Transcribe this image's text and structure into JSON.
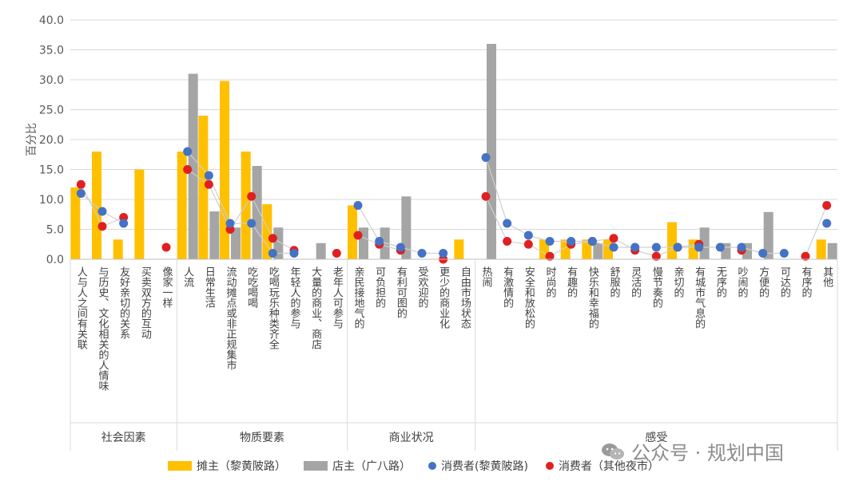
{
  "chart_data": {
    "type": "bar",
    "title": "",
    "ylabel": "百分比",
    "ylim": [
      0,
      40
    ],
    "yticks": [
      "0.0",
      "5.0",
      "10.0",
      "15.0",
      "20.0",
      "25.0",
      "30.0",
      "35.0",
      "40.0"
    ],
    "yticks_values": [
      0,
      5,
      10,
      15,
      20,
      25,
      30,
      35,
      40
    ],
    "grid": true,
    "legend_position": "bottom",
    "categories": [
      "人与人之间有关联",
      "与历史、文化相关的人情味",
      "友好亲切的关系",
      "买卖双方的互动",
      "像家一样",
      "人流",
      "日常生活",
      "流动摊点或非正规集市",
      "吃吃喝喝",
      "吃喝玩乐种类齐全",
      "年轻人的参与",
      "大量的商业、商店",
      "老年人可参与",
      "亲民接地气的",
      "可负担的",
      "有利可图的",
      "受欢迎的",
      "更少的商业化",
      "自由市场状态",
      "热闹",
      "有激情的",
      "安全和放松的",
      "时尚的",
      "有趣的",
      "快乐和幸福的",
      "舒服的",
      "灵活的",
      "慢节奏的",
      "亲切的",
      "有城市气息的",
      "无序的",
      "吵闹的",
      "方便的",
      "可达的",
      "有序的",
      "其他"
    ],
    "groups": [
      {
        "name": "社会因素",
        "start": 0,
        "end": 4
      },
      {
        "name": "物质要素",
        "start": 5,
        "end": 12
      },
      {
        "name": "商业状况",
        "start": 13,
        "end": 18
      },
      {
        "name": "感受",
        "start": 19,
        "end": 35
      }
    ],
    "series": [
      {
        "name": "摊主（黎黄陂路）",
        "kind": "bar",
        "color": "#FFC000",
        "values": [
          12.0,
          18.0,
          3.3,
          15.0,
          0,
          18.0,
          24.0,
          29.8,
          18.0,
          9.2,
          0,
          0,
          0,
          9.0,
          0,
          0,
          0,
          0,
          3.3,
          0,
          0,
          0,
          3.3,
          3.3,
          3.3,
          3.3,
          0,
          0,
          6.2,
          3.3,
          0,
          0,
          0,
          0,
          0,
          3.3
        ]
      },
      {
        "name": "店主（广八路）",
        "kind": "bar",
        "color": "#A5A5A5",
        "values": [
          0,
          0,
          0,
          0,
          0,
          31.0,
          8.0,
          5.3,
          15.6,
          5.3,
          0,
          2.7,
          0,
          5.3,
          5.3,
          10.5,
          0,
          0,
          0,
          36.0,
          0,
          0,
          0,
          0,
          2.7,
          0,
          0,
          0,
          0,
          5.3,
          2.7,
          2.7,
          7.9,
          0,
          0,
          2.7
        ]
      },
      {
        "name": "消费者(黎黄陂路)",
        "kind": "point",
        "color": "#4472C4",
        "values": [
          11.0,
          8.0,
          6.0,
          null,
          null,
          18.0,
          14.0,
          6.0,
          6.0,
          1.0,
          1.0,
          null,
          null,
          9.0,
          3.0,
          2.0,
          1.0,
          1.0,
          null,
          17.0,
          6.0,
          4.0,
          3.0,
          3.0,
          3.0,
          2.0,
          2.0,
          2.0,
          2.0,
          2.0,
          2.0,
          2.0,
          1.0,
          1.0,
          null,
          6.0
        ]
      },
      {
        "name": "消费者（其他夜市）",
        "kind": "point",
        "color": "#E02020",
        "values": [
          12.5,
          5.5,
          7.0,
          null,
          2.0,
          15.0,
          12.5,
          5.0,
          10.5,
          3.5,
          1.5,
          null,
          1.0,
          4.0,
          2.5,
          1.5,
          null,
          0,
          null,
          10.5,
          3.0,
          2.5,
          0.5,
          2.5,
          3.0,
          3.5,
          1.5,
          0.5,
          2.0,
          2.5,
          null,
          1.5,
          null,
          null,
          0.5,
          9.0
        ]
      }
    ]
  },
  "legend": {
    "items": [
      {
        "label": "摊主（黎黄陂路）",
        "color": "#FFC000",
        "shape": "bar"
      },
      {
        "label": "店主（广八路）",
        "color": "#A5A5A5",
        "shape": "bar"
      },
      {
        "label": "消费者(黎黄陂路)",
        "color": "#4472C4",
        "shape": "dot"
      },
      {
        "label": "消费者（其他夜市）",
        "color": "#E02020",
        "shape": "dot"
      }
    ]
  },
  "watermark": {
    "text": "公众号 · 规划中国",
    "icon": "wechat-icon"
  }
}
